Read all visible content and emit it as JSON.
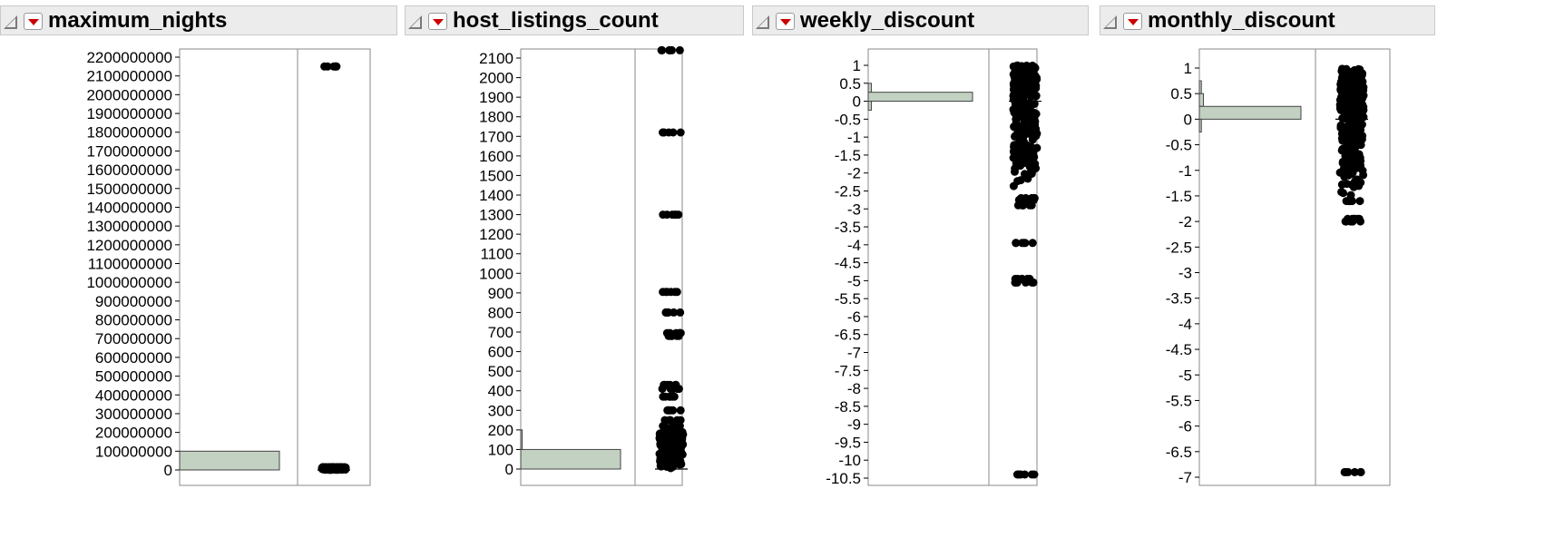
{
  "panels": [
    {
      "title": "maximum_nights",
      "axis": {
        "min": 0,
        "max": 2200000000,
        "step": 100000000
      },
      "chart_data": {
        "type": "histogram+dotplot",
        "ticks": [
          "0",
          "100000000",
          "200000000",
          "300000000",
          "400000000",
          "500000000",
          "600000000",
          "700000000",
          "800000000",
          "900000000",
          "1000000000",
          "1100000000",
          "1200000000",
          "1300000000",
          "1400000000",
          "1500000000",
          "1600000000",
          "1700000000",
          "1800000000",
          "1900000000",
          "2000000000",
          "2100000000",
          "2200000000"
        ],
        "ylim": [
          0,
          2200000000
        ],
        "histogram_bins": [
          {
            "from": 0,
            "to": 100000000,
            "rel": 1.0
          }
        ],
        "outlier_points": [
          2150000000
        ],
        "dense_cluster": [
          0,
          15000000
        ]
      }
    },
    {
      "title": "host_listings_count",
      "axis": {
        "min": 0,
        "max": 2100,
        "step": 100
      },
      "chart_data": {
        "type": "histogram+dotplot",
        "ticks": [
          "0",
          "100",
          "200",
          "300",
          "400",
          "500",
          "600",
          "700",
          "800",
          "900",
          "1000",
          "1100",
          "1200",
          "1300",
          "1400",
          "1500",
          "1600",
          "1700",
          "1800",
          "1900",
          "2000",
          "2100"
        ],
        "ylim": [
          0,
          2100
        ],
        "histogram_bins": [
          {
            "from": 0,
            "to": 100,
            "rel": 1.0
          },
          {
            "from": 100,
            "to": 200,
            "rel": 0.015
          }
        ],
        "outlier_points": [
          2140,
          1720,
          1300,
          905,
          800,
          695,
          680,
          430,
          410,
          370,
          300,
          250,
          220,
          200
        ],
        "dense_cluster": [
          0,
          190
        ]
      }
    },
    {
      "title": "weekly_discount",
      "axis": {
        "min": -10.5,
        "max": 1,
        "step": 0.5
      },
      "chart_data": {
        "type": "histogram+dotplot",
        "ticks": [
          "-10.5",
          "-10",
          "-9.5",
          "-9",
          "-8.5",
          "-8",
          "-7.5",
          "-7",
          "-6.5",
          "-6",
          "-5.5",
          "-5",
          "-4.5",
          "-4",
          "-3.5",
          "-3",
          "-2.5",
          "-2",
          "-1.5",
          "-1",
          "-0.5",
          "0",
          "0.5",
          "1"
        ],
        "ylim": [
          -10.5,
          1.1
        ],
        "histogram_bins": [
          {
            "from": 0,
            "to": 0.5,
            "rel": 0.03
          },
          {
            "from": 0,
            "to": 0.25,
            "rel": 1.0
          },
          {
            "from": -0.25,
            "to": 0,
            "rel": 0.03
          }
        ],
        "outlier_points": [
          -10.4,
          -4.95,
          -5.05,
          -3.95,
          -2.9,
          -2.75,
          -2.7
        ],
        "dense_cluster": [
          -2.5,
          1.0
        ]
      }
    },
    {
      "title": "monthly_discount",
      "axis": {
        "min": -7,
        "max": 1,
        "step": 0.5
      },
      "chart_data": {
        "type": "histogram+dotplot",
        "ticks": [
          "-7",
          "-6.5",
          "-6",
          "-5.5",
          "-5",
          "-4.5",
          "-4",
          "-3.5",
          "-3",
          "-2.5",
          "-2",
          "-1.5",
          "-1",
          "-0.5",
          "0",
          "0.5",
          "1"
        ],
        "ylim": [
          -7,
          1.1
        ],
        "histogram_bins": [
          {
            "from": 0.5,
            "to": 0.75,
            "rel": 0.02
          },
          {
            "from": 0.25,
            "to": 0.5,
            "rel": 0.04
          },
          {
            "from": 0,
            "to": 0.25,
            "rel": 1.0
          },
          {
            "from": -0.25,
            "to": 0,
            "rel": 0.02
          }
        ],
        "outlier_points": [
          -6.9,
          -2.0,
          -1.95,
          -1.6
        ],
        "dense_cluster": [
          -1.5,
          1.0
        ]
      }
    }
  ]
}
